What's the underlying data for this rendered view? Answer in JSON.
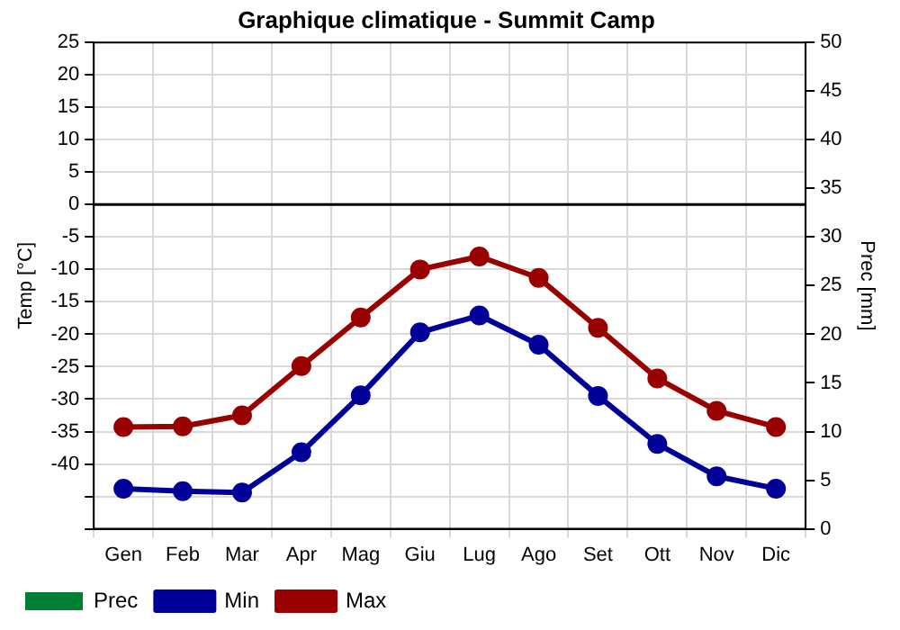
{
  "chart_data": {
    "type": "line",
    "title": "Graphique climatique - Summit Camp",
    "ylabel": "Temp [°C]",
    "y2label": "Prec [mm]",
    "categories": [
      "Gen",
      "Feb",
      "Mar",
      "Apr",
      "Mag",
      "Giu",
      "Lug",
      "Ago",
      "Set",
      "Ott",
      "Nov",
      "Dic"
    ],
    "series": [
      {
        "name": "Prec",
        "type": "bar",
        "color": "#008033",
        "values": [
          0,
          0,
          0,
          0,
          0,
          0,
          0,
          0,
          0,
          0,
          0,
          0
        ]
      },
      {
        "name": "Min",
        "color": "#000099",
        "values": [
          -43.8,
          -44.2,
          -44.4,
          -38.2,
          -29.4,
          -19.7,
          -17.1,
          -21.6,
          -29.5,
          -36.9,
          -41.9,
          -43.8
        ]
      },
      {
        "name": "Max",
        "color": "#990000",
        "values": [
          -34.3,
          -34.2,
          -32.5,
          -24.9,
          -17.4,
          -10.0,
          -8.0,
          -11.3,
          -19.0,
          -26.8,
          -31.8,
          -34.3
        ]
      }
    ],
    "ylim": [
      -50,
      25
    ],
    "yticks": [
      25,
      20,
      15,
      10,
      5,
      0,
      -5,
      -10,
      -15,
      -20,
      -25,
      -30,
      -35,
      -40,
      {
        "value": -45,
        "label": null
      },
      {
        "value": -50,
        "label": null
      }
    ],
    "y2lim": [
      0,
      50
    ],
    "y2ticks": [
      0,
      5,
      10,
      15,
      20,
      25,
      30,
      35,
      40,
      45,
      50
    ],
    "ref_lines": [
      {
        "axis": "y",
        "value": 0,
        "color": "#000000"
      }
    ],
    "grid": true,
    "legend": "bottom left",
    "marker": "circle",
    "line_style": "solid"
  }
}
